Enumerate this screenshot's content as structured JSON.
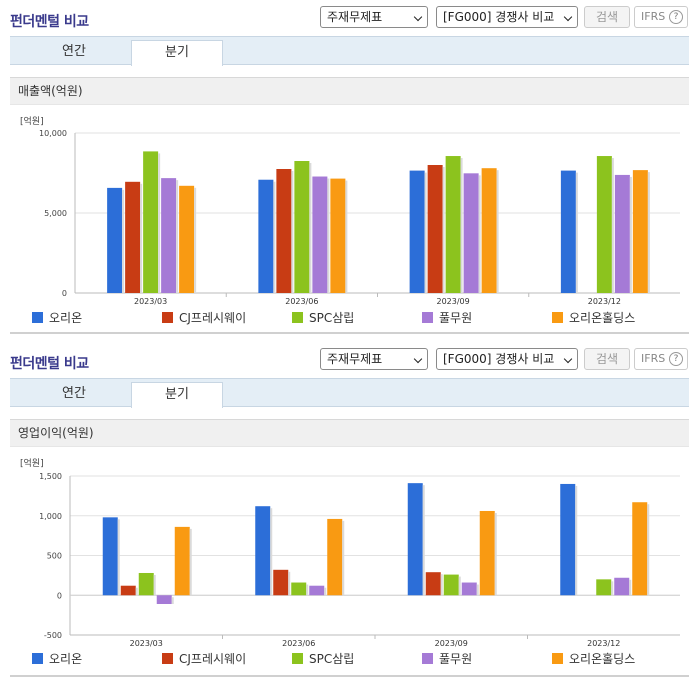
{
  "colors": {
    "orion": "#2c6ed8",
    "cj": "#c83c14",
    "spc": "#8cc31e",
    "pulmuone": "#a57ad6",
    "orion_holdings": "#f99a12"
  },
  "legend": [
    {
      "name": "오리온",
      "color": "#2c6ed8"
    },
    {
      "name": "CJ프레시웨이",
      "color": "#c83c14"
    },
    {
      "name": "SPC삼립",
      "color": "#8cc31e"
    },
    {
      "name": "풀무원",
      "color": "#a57ad6"
    },
    {
      "name": "오리온홀딩스",
      "color": "#f99a12"
    }
  ],
  "panels": [
    {
      "title": "펀더멘털 비교",
      "select_item": "주재무제표",
      "select_compare": "[FG000] 경쟁사 비교",
      "search_label": "검색",
      "ifrs_label": "IFRS",
      "help_icon": "?",
      "tabs": [
        "연간",
        "분기"
      ],
      "section_title": "매출액(억원)",
      "unit": "[억원]"
    },
    {
      "title": "펀더멘털 비교",
      "select_item": "주재무제표",
      "select_compare": "[FG000] 경쟁사 비교",
      "search_label": "검색",
      "ifrs_label": "IFRS",
      "help_icon": "?",
      "tabs": [
        "연간",
        "분기"
      ],
      "section_title": "영업이익(억원)",
      "unit": "[억원]"
    }
  ],
  "chart_data": [
    {
      "type": "bar",
      "title": "매출액(억원)",
      "ylabel": "[억원]",
      "categories": [
        "2023/03",
        "2023/06",
        "2023/09",
        "2023/12"
      ],
      "ylim": [
        0,
        10000
      ],
      "yticks": [
        0,
        5000,
        10000
      ],
      "ytick_labels": [
        "0",
        "5,000",
        "10,000"
      ],
      "series": [
        {
          "name": "오리온",
          "values": [
            6570,
            7080,
            7650,
            7650
          ]
        },
        {
          "name": "CJ프레시웨이",
          "values": [
            6950,
            7750,
            8000,
            null
          ]
        },
        {
          "name": "SPC삼립",
          "values": [
            8850,
            8250,
            8560,
            8560
          ]
        },
        {
          "name": "풀무원",
          "values": [
            7180,
            7280,
            7480,
            7380
          ]
        },
        {
          "name": "오리온홀딩스",
          "values": [
            6700,
            7150,
            7800,
            7680
          ]
        }
      ]
    },
    {
      "type": "bar",
      "title": "영업이익(억원)",
      "ylabel": "[억원]",
      "categories": [
        "2023/03",
        "2023/06",
        "2023/09",
        "2023/12"
      ],
      "ylim": [
        -500,
        1500
      ],
      "yticks": [
        -500,
        0,
        500,
        1000,
        1500
      ],
      "ytick_labels": [
        "-500",
        "0",
        "500",
        "1,000",
        "1,500"
      ],
      "series": [
        {
          "name": "오리온",
          "values": [
            980,
            1120,
            1410,
            1400
          ]
        },
        {
          "name": "CJ프레시웨이",
          "values": [
            120,
            320,
            290,
            null
          ]
        },
        {
          "name": "SPC삼립",
          "values": [
            280,
            160,
            260,
            200
          ]
        },
        {
          "name": "풀무원",
          "values": [
            -110,
            120,
            160,
            220
          ]
        },
        {
          "name": "오리온홀딩스",
          "values": [
            860,
            960,
            1060,
            1170
          ]
        }
      ]
    }
  ]
}
